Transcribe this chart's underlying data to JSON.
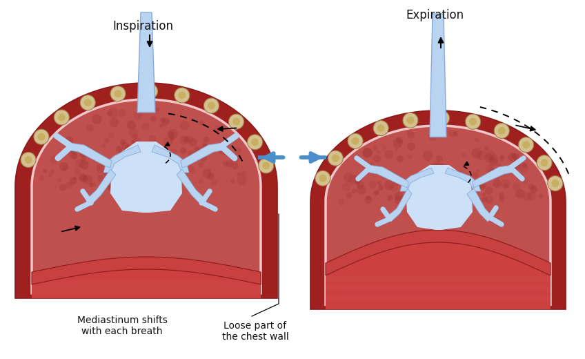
{
  "bg_color": "#ffffff",
  "lung_fill": "#c0504d",
  "chest_wall_fill": "#a02020",
  "chest_wall_dark": "#8b1a1a",
  "pleura_color": "#f0c8cc",
  "airway_fill": "#b8d4f0",
  "airway_border": "#88aad8",
  "diaphragm_fill": "#c84040",
  "diaphragm_dark": "#8b1a1a",
  "rib_fill": "#d4c090",
  "rib_border": "#a08040",
  "rib_inner": "#c8b060",
  "arrow_color": "#111111",
  "blue_arrow_color": "#4a8fca",
  "text_color": "#111111",
  "label_inspiration": "Inspiration",
  "label_expiration": "Expiration",
  "label_mediastinum": "Mediastinum shifts\nwith each breath",
  "label_loose_part": "Loose part of\nthe chest wall",
  "title_fontsize": 12,
  "label_fontsize": 10
}
